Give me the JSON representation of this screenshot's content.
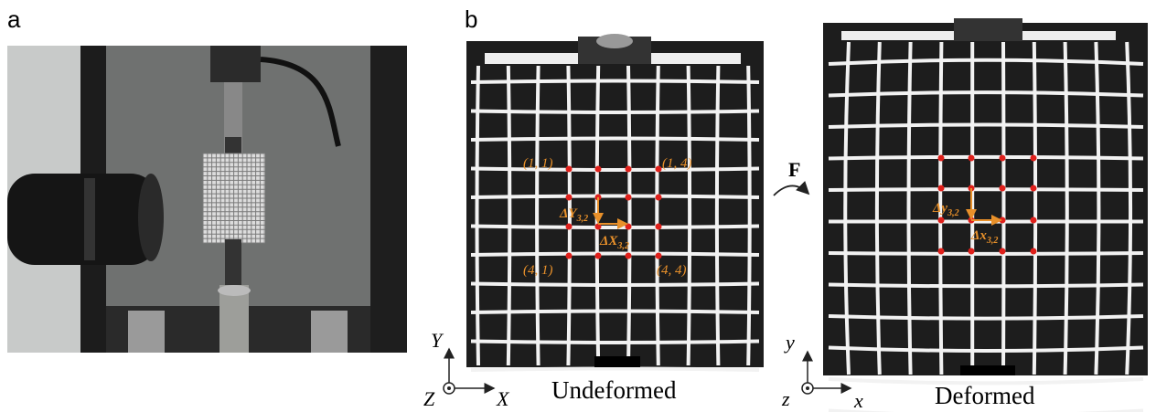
{
  "panels": {
    "a": "a",
    "b": "b"
  },
  "undeformed": {
    "caption": "Undeformed",
    "corner_labels": [
      "(1, 1)",
      "(1, 4)",
      "(4, 1)",
      "(4, 4)"
    ],
    "delta_y": {
      "main": "ΔY",
      "sub": "3,2"
    },
    "delta_x": {
      "main": "ΔX",
      "sub": "3,2"
    },
    "axes": {
      "vertical": "Y",
      "out": "Z",
      "horizontal": "X"
    }
  },
  "force": "F",
  "deformed": {
    "caption": "Deformed",
    "delta_y": {
      "main": "Δy",
      "sub": "3,2"
    },
    "delta_x": {
      "main": "Δx",
      "sub": "3,2"
    },
    "axes": {
      "vertical": "y",
      "out": "z",
      "horizontal": "x"
    }
  }
}
